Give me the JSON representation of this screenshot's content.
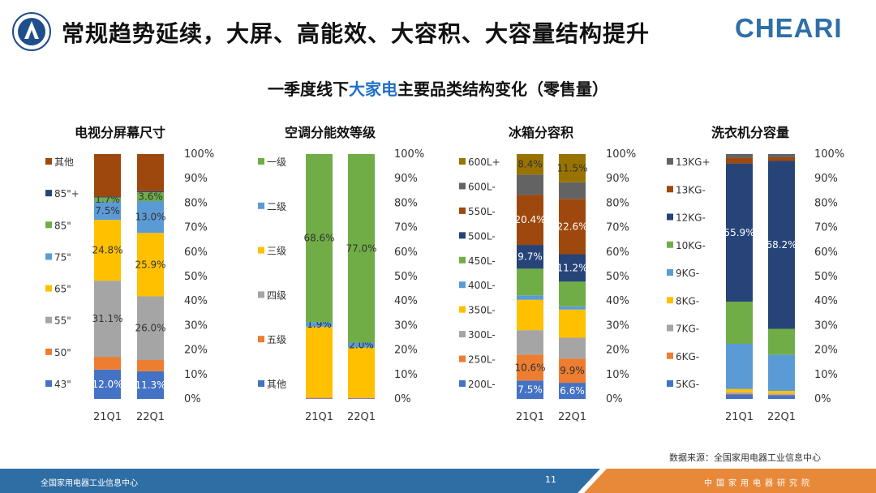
{
  "header": {
    "title": "常规趋势延续，大屏、高能效、大容积、大容量结构提升",
    "brand": "CHEARI"
  },
  "subtitle": {
    "prefix": "一季度线下",
    "highlight": "大家电",
    "suffix": "主要品类结构变化（零售量）"
  },
  "source": "数据来源：全国家用电器工业信息中心",
  "footer": {
    "left": "全国家用电器工业信息中心",
    "page": "11",
    "right": "中国家用电器研究院"
  },
  "colors": {
    "accent": "#1f6fc8",
    "brand": "#2e6fa8",
    "footer_blue": "#2f6ea5",
    "footer_orange": "#e8893a"
  },
  "chart_data": [
    {
      "type": "bar",
      "stacked": true,
      "title": "电视分屏幕尺寸",
      "categories": [
        "21Q1",
        "22Q1"
      ],
      "ylim": [
        0,
        100
      ],
      "yticks": [
        "0%",
        "10%",
        "20%",
        "30%",
        "40%",
        "50%",
        "60%",
        "70%",
        "80%",
        "90%",
        "100%"
      ],
      "legend": "left",
      "series": [
        {
          "name": "43\"",
          "color": "#4472c4",
          "values": [
            12.0,
            11.3
          ],
          "labels": [
            "12.0%",
            "11.3%"
          ]
        },
        {
          "name": "50\"",
          "color": "#ed7d31",
          "values": [
            5.2,
            4.6
          ],
          "labels": [
            "",
            ""
          ]
        },
        {
          "name": "55\"",
          "color": "#a5a5a5",
          "values": [
            31.1,
            26.0
          ],
          "labels": [
            "31.1%",
            "26.0%"
          ]
        },
        {
          "name": "65\"",
          "color": "#ffc000",
          "values": [
            24.8,
            25.9
          ],
          "labels": [
            "24.8%",
            "25.9%"
          ]
        },
        {
          "name": "75\"",
          "color": "#5b9bd5",
          "values": [
            7.5,
            13.0
          ],
          "labels": [
            "7.5%",
            "13.0%"
          ]
        },
        {
          "name": "85\"",
          "color": "#70ad47",
          "values": [
            1.7,
            3.6
          ],
          "labels": [
            "1.7%",
            "3.6%"
          ]
        },
        {
          "name": "85\"+",
          "color": "#264478",
          "values": [
            0.3,
            0.4
          ],
          "labels": [
            "",
            ""
          ]
        },
        {
          "name": "其他",
          "color": "#9e480e",
          "values": [
            17.4,
            15.2
          ],
          "labels": [
            "",
            ""
          ]
        }
      ]
    },
    {
      "type": "bar",
      "stacked": true,
      "title": "空调分能效等级",
      "categories": [
        "21Q1",
        "22Q1"
      ],
      "ylim": [
        0,
        100
      ],
      "yticks": [
        "0%",
        "10%",
        "20%",
        "30%",
        "40%",
        "50%",
        "60%",
        "70%",
        "80%",
        "90%",
        "100%"
      ],
      "legend": "left",
      "series": [
        {
          "name": "其他",
          "color": "#4472c4",
          "values": [
            0.2,
            0.2
          ],
          "labels": [
            "",
            ""
          ]
        },
        {
          "name": "五级",
          "color": "#ed7d31",
          "values": [
            0.3,
            0.2
          ],
          "labels": [
            "",
            ""
          ]
        },
        {
          "name": "四级",
          "color": "#a5a5a5",
          "values": [
            0.1,
            0.1
          ],
          "labels": [
            "",
            ""
          ]
        },
        {
          "name": "三级",
          "color": "#ffc000",
          "values": [
            28.9,
            20.5
          ],
          "labels": [
            "",
            ""
          ]
        },
        {
          "name": "二级",
          "color": "#5b9bd5",
          "values": [
            1.9,
            2.0
          ],
          "labels": [
            "1.9%",
            "2.0%"
          ]
        },
        {
          "name": "一级",
          "color": "#70ad47",
          "values": [
            68.6,
            77.0
          ],
          "labels": [
            "68.6%",
            "77.0%"
          ]
        }
      ]
    },
    {
      "type": "bar",
      "stacked": true,
      "title": "冰箱分容积",
      "categories": [
        "21Q1",
        "22Q1"
      ],
      "ylim": [
        0,
        100
      ],
      "yticks": [
        "0%",
        "10%",
        "20%",
        "30%",
        "40%",
        "50%",
        "60%",
        "70%",
        "80%",
        "90%",
        "100%"
      ],
      "legend": "left",
      "series": [
        {
          "name": "200L-",
          "color": "#4472c4",
          "values": [
            7.5,
            6.6
          ],
          "labels": [
            "7.5%",
            "6.6%"
          ]
        },
        {
          "name": "250L-",
          "color": "#ed7d31",
          "values": [
            10.6,
            9.9
          ],
          "labels": [
            "10.6%",
            "9.9%"
          ]
        },
        {
          "name": "300L-",
          "color": "#a5a5a5",
          "values": [
            10.0,
            8.5
          ],
          "labels": [
            "",
            ""
          ]
        },
        {
          "name": "350L-",
          "color": "#ffc000",
          "values": [
            12.4,
            11.5
          ],
          "labels": [
            "",
            ""
          ]
        },
        {
          "name": "400L-",
          "color": "#5b9bd5",
          "values": [
            1.8,
            1.3
          ],
          "labels": [
            "",
            ""
          ]
        },
        {
          "name": "450L-",
          "color": "#70ad47",
          "values": [
            10.9,
            10.1
          ],
          "labels": [
            "",
            ""
          ]
        },
        {
          "name": "500L-",
          "color": "#264478",
          "values": [
            9.7,
            11.2
          ],
          "labels": [
            "9.7%",
            "11.2%"
          ]
        },
        {
          "name": "550L-",
          "color": "#9e480e",
          "values": [
            20.4,
            22.6
          ],
          "labels": [
            "20.4%",
            "22.6%"
          ]
        },
        {
          "name": "600L-",
          "color": "#636363",
          "values": [
            8.3,
            6.8
          ],
          "labels": [
            "",
            ""
          ]
        },
        {
          "name": "600L+",
          "color": "#997300",
          "values": [
            8.4,
            11.5
          ],
          "labels": [
            "8.4%",
            "11.5%"
          ]
        }
      ]
    },
    {
      "type": "bar",
      "stacked": true,
      "title": "洗衣机分容量",
      "categories": [
        "21Q1",
        "22Q1"
      ],
      "ylim": [
        0,
        100
      ],
      "yticks": [
        "0%",
        "10%",
        "20%",
        "30%",
        "40%",
        "50%",
        "60%",
        "70%",
        "80%",
        "90%",
        "100%"
      ],
      "legend": "left",
      "series": [
        {
          "name": "5KG-",
          "color": "#4472c4",
          "values": [
            1.8,
            1.5
          ],
          "labels": [
            "",
            ""
          ]
        },
        {
          "name": "6KG-",
          "color": "#ed7d31",
          "values": [
            0.3,
            0.2
          ],
          "labels": [
            "",
            ""
          ]
        },
        {
          "name": "7KG-",
          "color": "#a5a5a5",
          "values": [
            0.6,
            0.5
          ],
          "labels": [
            "",
            ""
          ]
        },
        {
          "name": "8KG-",
          "color": "#ffc000",
          "values": [
            1.3,
            1.1
          ],
          "labels": [
            "",
            ""
          ]
        },
        {
          "name": "9KG-",
          "color": "#5b9bd5",
          "values": [
            18.3,
            14.7
          ],
          "labels": [
            "",
            ""
          ]
        },
        {
          "name": "10KG-",
          "color": "#70ad47",
          "values": [
            17.0,
            10.5
          ],
          "labels": [
            "",
            ""
          ]
        },
        {
          "name": "12KG-",
          "color": "#264478",
          "values": [
            55.9,
            68.2
          ],
          "labels": [
            "55.9%",
            "68.2%"
          ]
        },
        {
          "name": "13KG-",
          "color": "#9e480e",
          "values": [
            2.3,
            1.5
          ],
          "labels": [
            "",
            ""
          ]
        },
        {
          "name": "13KG+",
          "color": "#636363",
          "values": [
            1.5,
            1.3
          ],
          "labels": [
            "",
            ""
          ]
        }
      ]
    }
  ]
}
